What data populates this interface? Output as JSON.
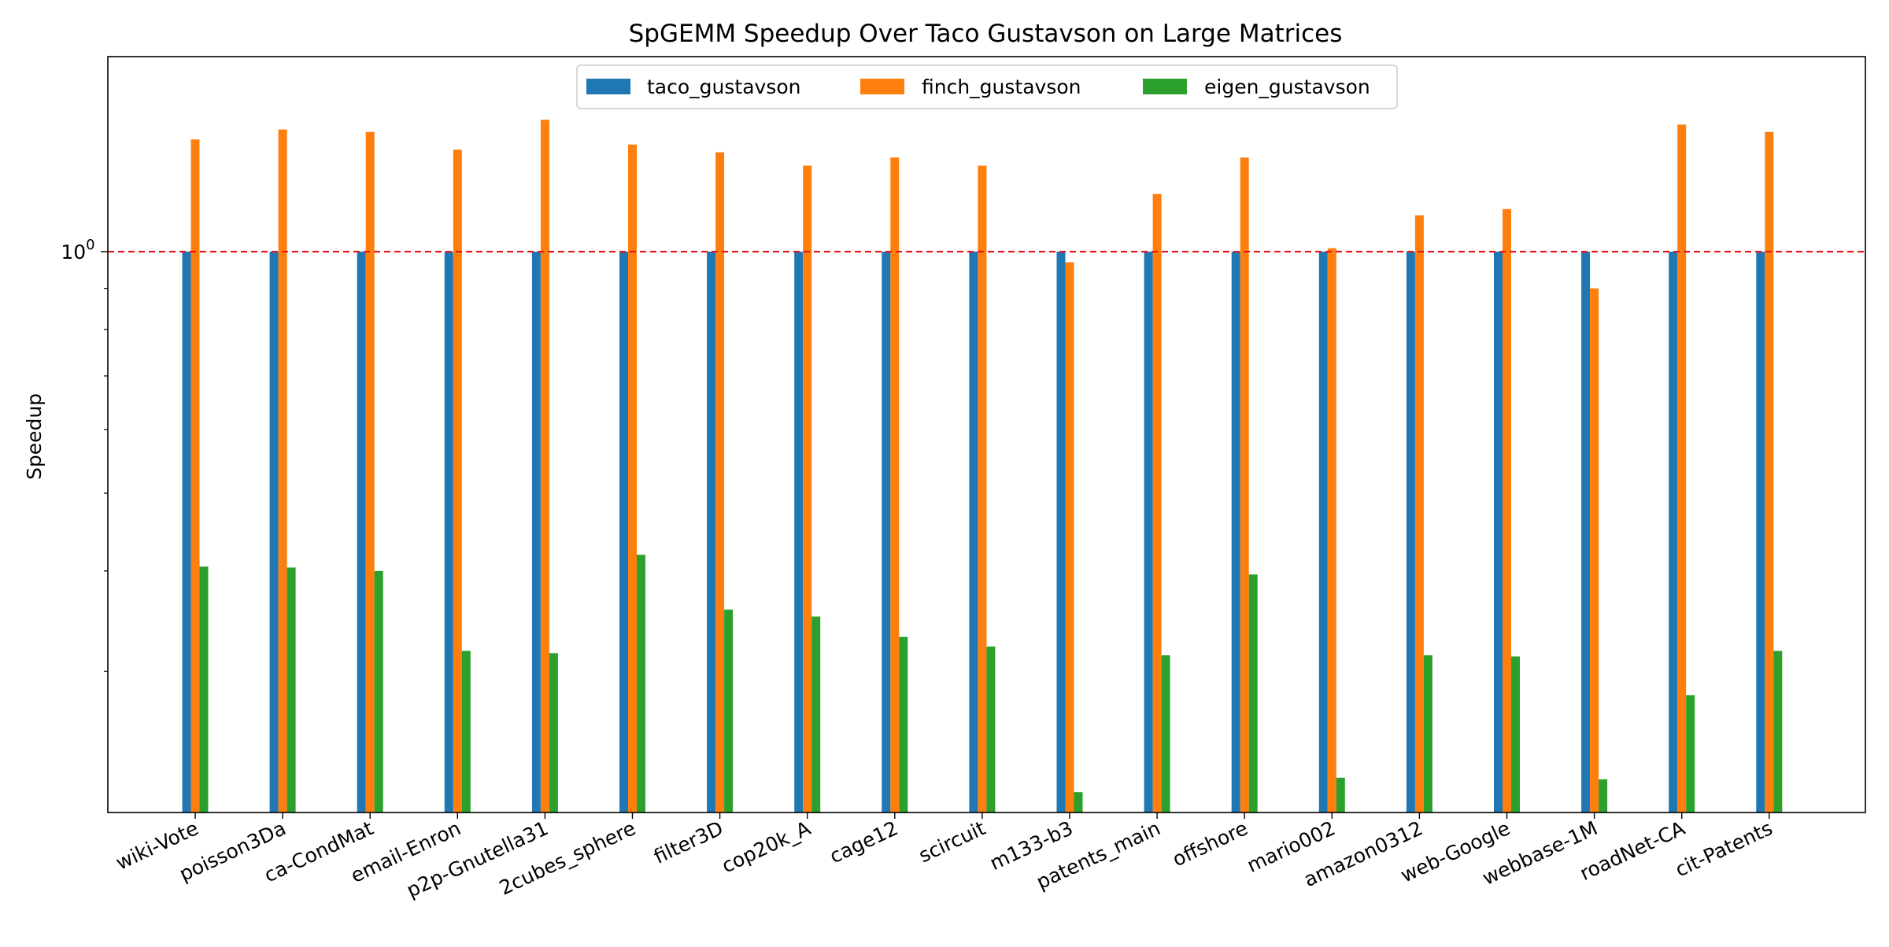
{
  "chart_data": {
    "type": "bar",
    "title": "SpGEMM Speedup Over Taco Gustavson on Large Matrices",
    "xlabel": "",
    "ylabel": "Speedup",
    "yscale": "log",
    "ylim": [
      0.2,
      1.75
    ],
    "yticks": [
      {
        "value": 1,
        "base": "10",
        "exp": "0"
      }
    ],
    "reference_line": {
      "value": 1,
      "color": "#e8161b",
      "style": "dashed"
    },
    "grid": false,
    "legend_position": "top-center",
    "categories": [
      "wiki-Vote",
      "poisson3Da",
      "ca-CondMat",
      "email-Enron",
      "p2p-Gnutella31",
      "2cubes_sphere",
      "filter3D",
      "cop20k_A",
      "cage12",
      "scircuit",
      "m133-b3",
      "patents_main",
      "offshore",
      "mario002",
      "amazon0312",
      "web-Google",
      "webbase-1M",
      "roadNet-CA",
      "cit-Patents"
    ],
    "series": [
      {
        "name": "taco_gustavson",
        "color": "#1f77b4",
        "values": [
          1,
          1,
          1,
          1,
          1,
          1,
          1,
          1,
          1,
          1,
          1,
          1,
          1,
          1,
          1,
          1,
          1,
          1,
          1
        ]
      },
      {
        "name": "finch_gustavson",
        "color": "#ff7f0e",
        "values": [
          1.38,
          1.42,
          1.41,
          1.34,
          1.46,
          1.36,
          1.33,
          1.28,
          1.31,
          1.28,
          0.97,
          1.18,
          1.31,
          1.01,
          1.11,
          1.13,
          0.9,
          1.44,
          1.41
        ]
      },
      {
        "name": "eigen_gustavson",
        "color": "#2ca02c",
        "values": [
          0.405,
          0.404,
          0.4,
          0.318,
          0.316,
          0.419,
          0.358,
          0.351,
          0.331,
          0.322,
          0.212,
          0.314,
          0.396,
          0.221,
          0.314,
          0.313,
          0.22,
          0.28,
          0.318
        ]
      }
    ]
  }
}
